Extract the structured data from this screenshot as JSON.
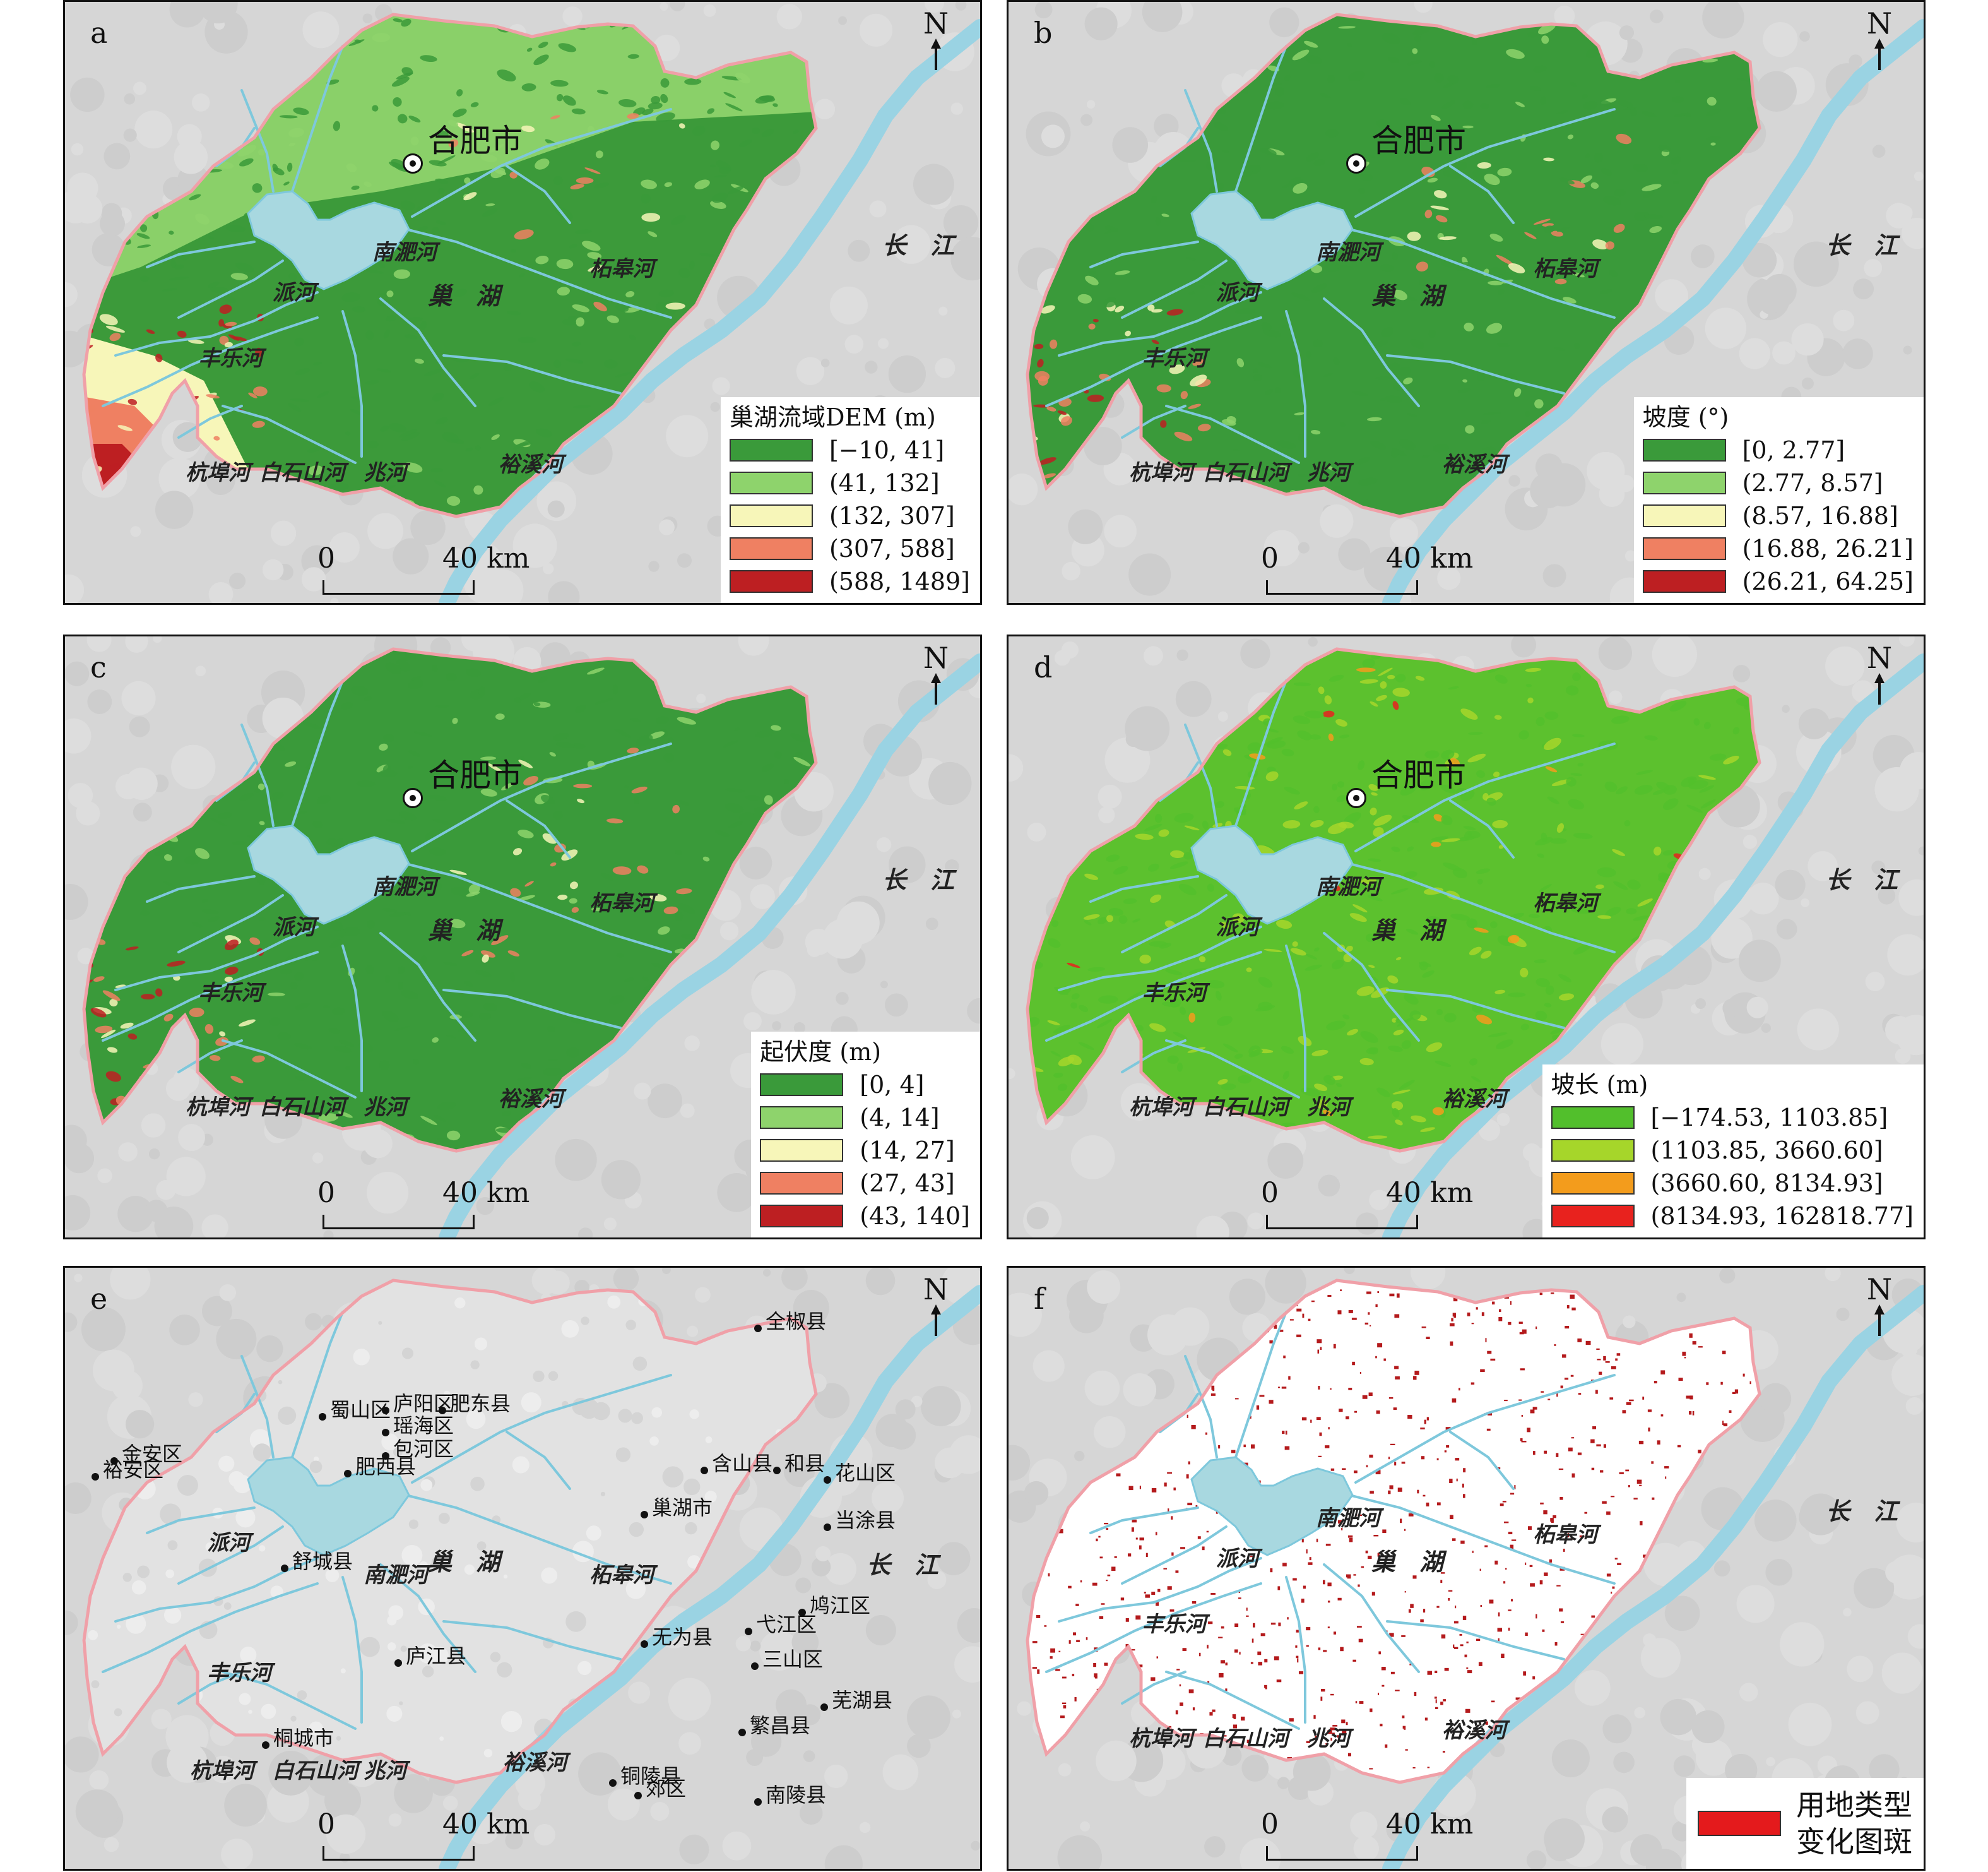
{
  "colors": {
    "lake": "#a8d8e0",
    "river": "#7ec8dc",
    "yangtze": "#9ad3e3",
    "boundary": "#f0a0a8",
    "hillshade": "#d6d6d6",
    "patch": "#b41a1c"
  },
  "panels": [
    {
      "id": "a",
      "label": "a",
      "base": "#3c9a3a",
      "legend_title": "巢湖流域DEM (m)",
      "legend": [
        {
          "label": "[−10, 41]",
          "color": "#3a9a3a"
        },
        {
          "label": "(41, 132]",
          "color": "#8ed36c"
        },
        {
          "label": "(132, 307]",
          "color": "#f7f6b9"
        },
        {
          "label": "(307, 588]",
          "color": "#ef8062"
        },
        {
          "label": "(588, 1489]",
          "color": "#bd1f22"
        }
      ]
    },
    {
      "id": "b",
      "label": "b",
      "base": "#3a9a3a",
      "legend_title": "坡度 (°)",
      "legend": [
        {
          "label": "[0, 2.77]",
          "color": "#3a9a3a"
        },
        {
          "label": "(2.77, 8.57]",
          "color": "#8ed36c"
        },
        {
          "label": "(8.57, 16.88]",
          "color": "#f7f6b9"
        },
        {
          "label": "(16.88, 26.21]",
          "color": "#ef8062"
        },
        {
          "label": "(26.21, 64.25]",
          "color": "#bd1f22"
        }
      ]
    },
    {
      "id": "c",
      "label": "c",
      "base": "#3a9a3a",
      "legend_title": "起伏度 (m)",
      "legend": [
        {
          "label": "[0, 4]",
          "color": "#3a9a3a"
        },
        {
          "label": "(4, 14]",
          "color": "#8ed36c"
        },
        {
          "label": "(14, 27]",
          "color": "#f7f6b9"
        },
        {
          "label": "(27, 43]",
          "color": "#ef8062"
        },
        {
          "label": "(43, 140]",
          "color": "#bd1f22"
        }
      ]
    },
    {
      "id": "d",
      "label": "d",
      "base": "#5cc12e",
      "legend_title": "坡长 (m)",
      "legend": [
        {
          "label": "[−174.53, 1103.85]",
          "color": "#52bf2c"
        },
        {
          "label": "(1103.85, 3660.60]",
          "color": "#a6d62a"
        },
        {
          "label": "(3660.60, 8134.93]",
          "color": "#f39c1c"
        },
        {
          "label": "(8134.93, 162818.77]",
          "color": "#e8221e"
        }
      ]
    },
    {
      "id": "e",
      "label": "e",
      "base": "#e2e2e2"
    },
    {
      "id": "f",
      "label": "f",
      "base": "#ffffff",
      "legend_title": "用地类型\n变化图斑",
      "legend_line1": "用地类型",
      "legend_line2": "变化图斑"
    }
  ],
  "north": "N",
  "scale": {
    "start": "0",
    "end": "40 km"
  },
  "city": "合肥市",
  "lake_label": "巢　湖",
  "yangtze_label": "长　江",
  "rivers": {
    "nanfei": "南淝河",
    "zhegao": "柘皋河",
    "pai": "派河",
    "fengle": "丰乐河",
    "hangbu": "杭埠河",
    "baishishan": "白石山河",
    "zhao": "兆河",
    "yuxi": "裕溪河"
  },
  "counties": [
    {
      "name": "全椒县"
    },
    {
      "name": "蜀山区"
    },
    {
      "name": "庐阳区"
    },
    {
      "name": "肥东县"
    },
    {
      "name": "瑶海区"
    },
    {
      "name": "包河区"
    },
    {
      "name": "金安区"
    },
    {
      "name": "裕安区"
    },
    {
      "name": "肥西县"
    },
    {
      "name": "含山县"
    },
    {
      "name": "和县"
    },
    {
      "name": "花山区"
    },
    {
      "name": "巢湖市"
    },
    {
      "name": "当涂县"
    },
    {
      "name": "舒城县"
    },
    {
      "name": "鸠江区"
    },
    {
      "name": "弋江区"
    },
    {
      "name": "无为县"
    },
    {
      "name": "三山区"
    },
    {
      "name": "庐江县"
    },
    {
      "name": "芜湖县"
    },
    {
      "name": "繁昌县"
    },
    {
      "name": "桐城市"
    },
    {
      "name": "铜陵县"
    },
    {
      "name": "郊区"
    },
    {
      "name": "南陵县"
    }
  ]
}
